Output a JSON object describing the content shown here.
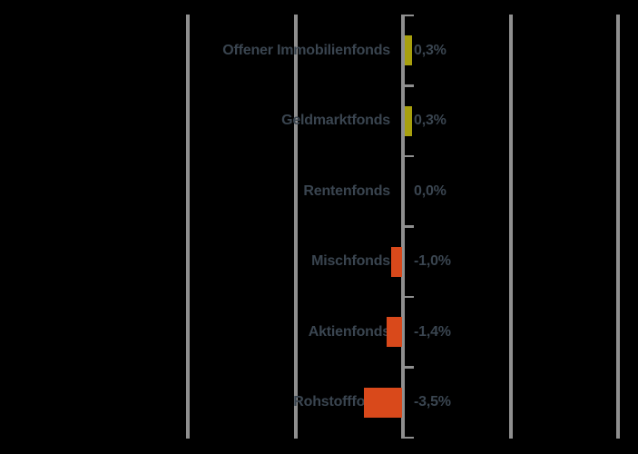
{
  "chart_data": {
    "type": "bar",
    "orientation": "horizontal",
    "title": "",
    "unit": "%",
    "categories": [
      "Offener Immobilienfonds",
      "Geldmarktfonds",
      "Rentenfonds",
      "Mischfonds",
      "Aktienfonds",
      "Rohstofffonds"
    ],
    "values": [
      0.3,
      0.3,
      0.0,
      -1.0,
      -1.4,
      -3.5
    ],
    "value_labels": [
      "0,3%",
      "0,3%",
      "0,0%",
      "-1,0%",
      "-1,4%",
      "-3,5%"
    ],
    "baseline_value": 0,
    "grid": true,
    "legend": "none",
    "colors": {
      "positive_bar": "#a8a00e",
      "negative_bar": "#d9491b",
      "text": "#3a4550",
      "gridline": "#8f8f8f",
      "background": "#000000"
    }
  }
}
